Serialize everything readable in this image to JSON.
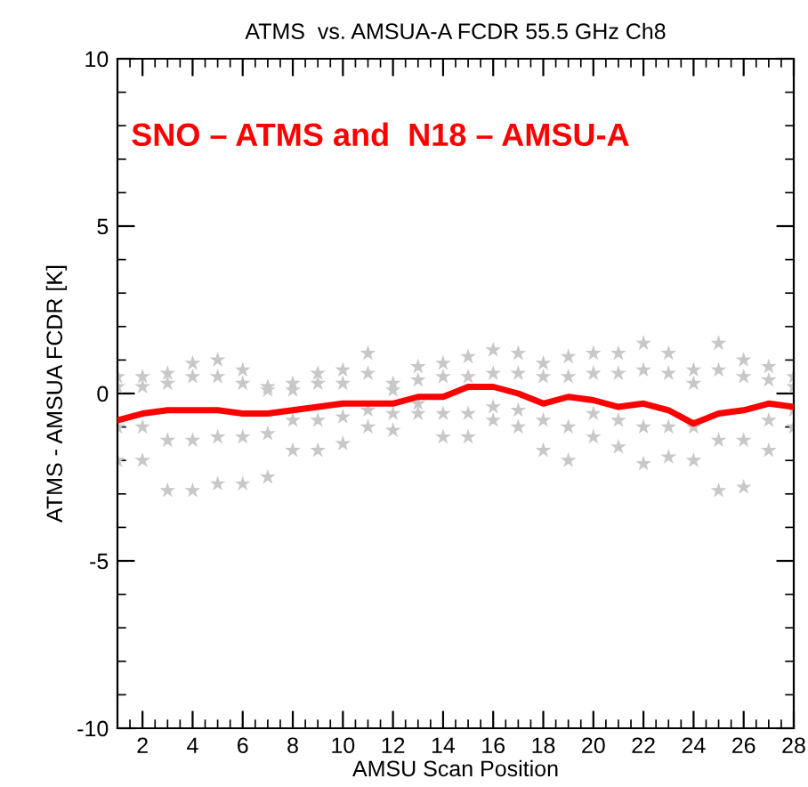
{
  "chart_data": {
    "type": "scatter",
    "title": "ATMS  vs. AMSUA-A FCDR 55.5 GHz Ch8",
    "xlabel": "AMSU Scan Position",
    "ylabel": "ATMS - AMSUA FCDR [K]",
    "annotations": [
      "SNO – ATMS and  N18 – AMSU-A"
    ],
    "xlim": [
      1,
      28
    ],
    "xticks": [
      2,
      4,
      6,
      8,
      10,
      12,
      14,
      16,
      18,
      20,
      22,
      24,
      26,
      28
    ],
    "ylim": [
      -10,
      10
    ],
    "yticks": [
      -10,
      -5,
      0,
      5,
      10
    ],
    "grid": false,
    "legend": false,
    "series": [
      {
        "color": "#c8c8c8",
        "marker": "star",
        "x": [
          1,
          1,
          1,
          1,
          2,
          2,
          2,
          2,
          3,
          3,
          3,
          3,
          4,
          4,
          4,
          4,
          5,
          5,
          5,
          5,
          6,
          6,
          6,
          6,
          7,
          7,
          7,
          7,
          8,
          8,
          8,
          8,
          9,
          9,
          9,
          9,
          10,
          10,
          10,
          10,
          11,
          11,
          11,
          11,
          12,
          12,
          12,
          12,
          13,
          13,
          13,
          13,
          14,
          14,
          14,
          14,
          15,
          15,
          15,
          15,
          16,
          16,
          16,
          16,
          17,
          17,
          17,
          17,
          18,
          18,
          18,
          18,
          19,
          19,
          19,
          19,
          20,
          20,
          20,
          20,
          21,
          21,
          21,
          21,
          22,
          22,
          22,
          22,
          23,
          23,
          23,
          23,
          24,
          24,
          24,
          24,
          25,
          25,
          25,
          25,
          26,
          26,
          26,
          26,
          27,
          27,
          27,
          27,
          28,
          28,
          28,
          28
        ],
        "values": [
          0.5,
          0.2,
          -1.0,
          -2.0,
          0.5,
          0.2,
          -1.0,
          -2.0,
          0.6,
          0.3,
          -1.4,
          -2.9,
          0.9,
          0.5,
          -1.4,
          -2.9,
          1.0,
          0.5,
          -1.3,
          -2.7,
          0.7,
          0.3,
          -1.3,
          -2.7,
          0.2,
          0.1,
          -1.2,
          -2.5,
          0.3,
          0.1,
          -0.8,
          -1.7,
          0.6,
          0.3,
          -0.8,
          -1.7,
          0.7,
          0.3,
          -0.7,
          -1.5,
          1.2,
          0.6,
          -0.5,
          -1.0,
          0.3,
          0.1,
          -0.6,
          -1.1,
          0.8,
          0.4,
          -0.3,
          -0.6,
          0.9,
          0.5,
          -0.6,
          -1.3,
          1.1,
          0.5,
          -0.6,
          -1.3,
          1.3,
          0.6,
          -0.4,
          -0.8,
          1.2,
          0.6,
          -0.5,
          -1.0,
          0.9,
          0.5,
          -0.8,
          -1.7,
          1.1,
          0.5,
          -1.0,
          -2.0,
          1.2,
          0.6,
          -0.6,
          -1.3,
          1.2,
          0.6,
          -0.8,
          -1.6,
          1.5,
          0.7,
          -1.0,
          -2.1,
          1.2,
          0.6,
          -1.0,
          -1.9,
          0.7,
          0.3,
          -1.0,
          -2.0,
          1.5,
          0.7,
          -1.4,
          -2.9,
          1.0,
          0.5,
          -1.4,
          -2.8,
          0.8,
          0.4,
          -0.8,
          -1.7,
          0.5,
          0.2,
          -0.5,
          -1.0
        ]
      },
      {
        "type": "line",
        "color": "#ff0000",
        "marker": "none",
        "line_style": "solid",
        "x": [
          1,
          2,
          3,
          4,
          5,
          6,
          7,
          8,
          9,
          10,
          11,
          12,
          13,
          14,
          15,
          16,
          17,
          18,
          19,
          20,
          21,
          22,
          23,
          24,
          25,
          26,
          27,
          28
        ],
        "values": [
          -0.8,
          -0.6,
          -0.5,
          -0.5,
          -0.5,
          -0.6,
          -0.6,
          -0.5,
          -0.4,
          -0.3,
          -0.3,
          -0.3,
          -0.1,
          -0.1,
          0.2,
          0.2,
          0.0,
          -0.3,
          -0.1,
          -0.2,
          -0.4,
          -0.3,
          -0.5,
          -0.9,
          -0.6,
          -0.5,
          -0.3,
          -0.4
        ]
      }
    ]
  }
}
